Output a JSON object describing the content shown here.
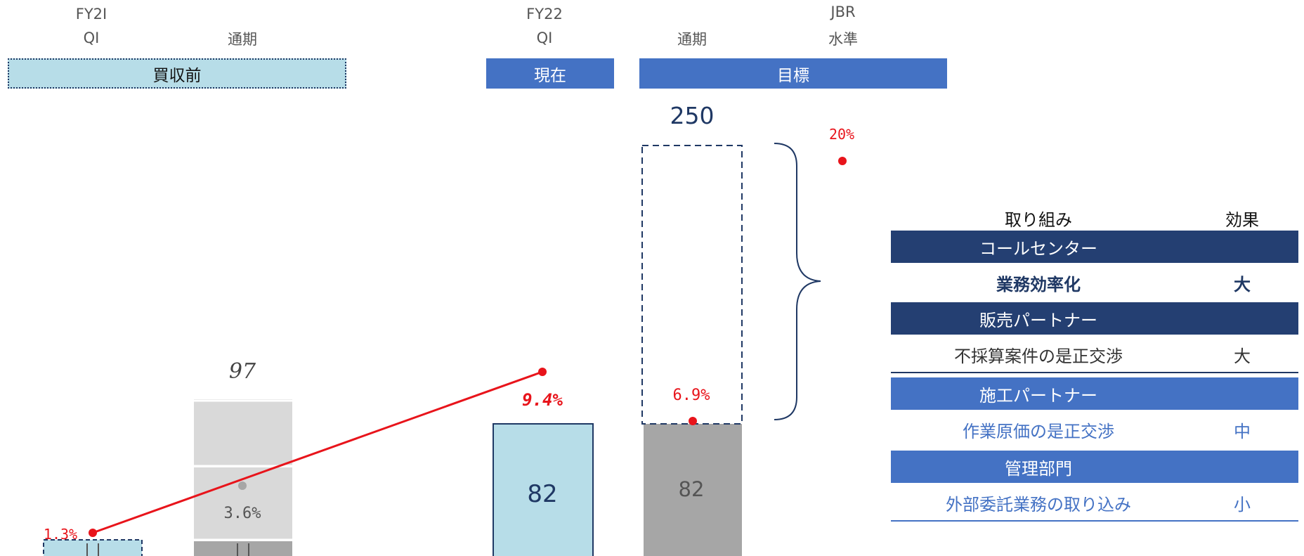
{
  "header": {
    "fy21_label": "FY2I",
    "fy21_q1": "QI",
    "fy21_full": "通期",
    "fy22_label": "FY22",
    "fy22_q1": "QI",
    "fy22_full": "通期",
    "jbr_label": "JBR",
    "jbr_level": "水準",
    "band_before": "買収前",
    "band_current": "現在",
    "band_target": "目標"
  },
  "chart_data": {
    "type": "bar",
    "categories": [
      "FY21 Q1",
      "FY21 通期",
      "FY22 Q1",
      "FY22 通期"
    ],
    "bar_values": [
      null,
      97,
      82,
      82
    ],
    "target_value": 250,
    "bar_labels": [
      "",
      "97",
      "82",
      "82",
      "250"
    ],
    "margin_series": {
      "values_pct": [
        1.3,
        3.6,
        9.4,
        6.9,
        20
      ],
      "labels": [
        "1.3%",
        "3.6%",
        "9.4%",
        "6.9%",
        "20%"
      ],
      "line_color": "#E8141B"
    },
    "colors": {
      "light_blue": "#B7DDE8",
      "gray": "#A6A6A6",
      "light_gray": "#D9D9D9",
      "navy": "#1F3864",
      "red": "#E8141B"
    }
  },
  "table": {
    "col_action": "取り組み",
    "col_effect": "効果",
    "groups": [
      {
        "name": "コールセンター",
        "item": "業務効率化",
        "effect": "大"
      },
      {
        "name": "販売パートナー",
        "item": "不採算案件の是正交渉",
        "effect": "大"
      },
      {
        "name": "施工パートナー",
        "item": "作業原価の是正交渉",
        "effect": "中"
      },
      {
        "name": "管理部門",
        "item": "外部委託業務の取り込み",
        "effect": "小"
      }
    ]
  }
}
